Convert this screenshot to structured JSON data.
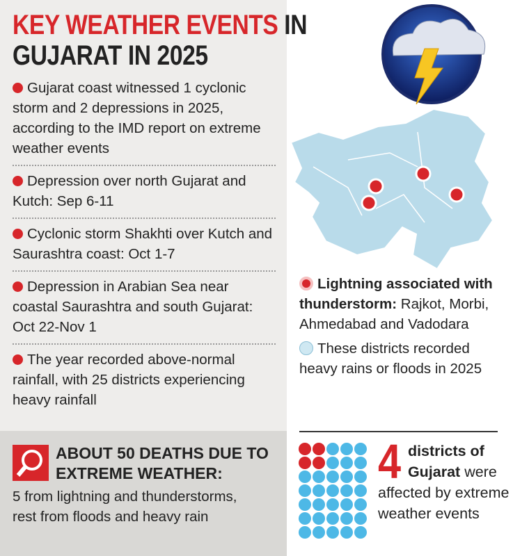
{
  "title": {
    "highlight": "KEY WEATHER EVENTS",
    "line1_end": "IN",
    "line2": "GUJARAT IN 2025"
  },
  "bullets": [
    "Gujarat coast witnessed 1 cyclonic storm and 2 depressions in 2025, according to the IMD report on extreme weather events",
    "Depression over north Gujarat and Kutch: Sep 6-11",
    "Cyclonic storm Shakhti over Kutch and Saurashtra coast: Oct 1-7",
    "Depression in Arabian Sea near coastal Saurashtra and south Gujarat: Oct 22-Nov 1",
    "The year recorded above-normal rainfall, with 25 districts experiencing heavy rainfall"
  ],
  "deaths": {
    "heading": "ABOUT 50 DEATHS DUE TO EXTREME WEATHER:",
    "text": "5 from lightning and thunderstorms, rest from floods and heavy rain"
  },
  "legend": [
    {
      "label": "Lightning associated with thunderstorm:",
      "text": "Rajkot, Morbi, Ahmedabad and Vadodara"
    },
    {
      "text": "These districts recorded heavy rains or floods in 2025"
    }
  ],
  "stat": {
    "number": "4",
    "bold": "districts of Gujarat",
    "text": "were affected by extreme weather events"
  }
}
